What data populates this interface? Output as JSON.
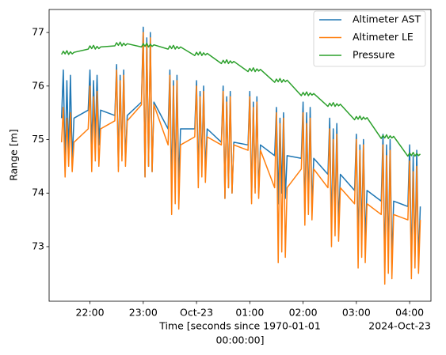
{
  "chart_data": {
    "type": "line",
    "xlabel": [
      "Time [seconds since 1970-01-01",
      "00:00:00]"
    ],
    "ylabel": "Range [m]",
    "x_offset_label": "2024-Oct-23",
    "legend": "upper right",
    "xlim": [
      "2024-10-22T21:14",
      "2024-10-23T04:24"
    ],
    "ylim": [
      71.98,
      77.43
    ],
    "yticks": [
      73,
      74,
      75,
      76,
      77
    ],
    "xticks": [
      {
        "value": "2024-10-22T22:00",
        "label": "22:00"
      },
      {
        "value": "2024-10-22T23:00",
        "label": "23:00"
      },
      {
        "value": "2024-10-23T00:00",
        "label": "Oct-23"
      },
      {
        "value": "2024-10-23T01:00",
        "label": "01:00"
      },
      {
        "value": "2024-10-23T02:00",
        "label": "02:00"
      },
      {
        "value": "2024-10-23T03:00",
        "label": "03:00"
      },
      {
        "value": "2024-10-23T04:00",
        "label": "04:00"
      }
    ],
    "x": [
      "2024-10-22T21:28",
      "2024-10-22T21:30",
      "2024-10-22T21:32",
      "2024-10-22T21:34",
      "2024-10-22T21:36",
      "2024-10-22T21:38",
      "2024-10-22T21:40",
      "2024-10-22T21:42",
      "2024-10-22T21:58",
      "2024-10-22T22:00",
      "2024-10-22T22:02",
      "2024-10-22T22:04",
      "2024-10-22T22:06",
      "2024-10-22T22:08",
      "2024-10-22T22:10",
      "2024-10-22T22:12",
      "2024-10-22T22:28",
      "2024-10-22T22:30",
      "2024-10-22T22:32",
      "2024-10-22T22:34",
      "2024-10-22T22:36",
      "2024-10-22T22:38",
      "2024-10-22T22:40",
      "2024-10-22T22:42",
      "2024-10-22T22:58",
      "2024-10-22T23:00",
      "2024-10-22T23:02",
      "2024-10-22T23:04",
      "2024-10-22T23:06",
      "2024-10-22T23:08",
      "2024-10-22T23:10",
      "2024-10-22T23:12",
      "2024-10-22T23:28",
      "2024-10-22T23:30",
      "2024-10-22T23:32",
      "2024-10-22T23:34",
      "2024-10-22T23:36",
      "2024-10-22T23:38",
      "2024-10-22T23:40",
      "2024-10-22T23:42",
      "2024-10-22T23:58",
      "2024-10-23T00:00",
      "2024-10-23T00:02",
      "2024-10-23T00:04",
      "2024-10-23T00:06",
      "2024-10-23T00:08",
      "2024-10-23T00:10",
      "2024-10-23T00:12",
      "2024-10-23T00:28",
      "2024-10-23T00:30",
      "2024-10-23T00:32",
      "2024-10-23T00:34",
      "2024-10-23T00:36",
      "2024-10-23T00:38",
      "2024-10-23T00:40",
      "2024-10-23T00:42",
      "2024-10-23T00:58",
      "2024-10-23T01:00",
      "2024-10-23T01:02",
      "2024-10-23T01:04",
      "2024-10-23T01:06",
      "2024-10-23T01:08",
      "2024-10-23T01:10",
      "2024-10-23T01:12",
      "2024-10-23T01:28",
      "2024-10-23T01:30",
      "2024-10-23T01:32",
      "2024-10-23T01:34",
      "2024-10-23T01:36",
      "2024-10-23T01:38",
      "2024-10-23T01:40",
      "2024-10-23T01:42",
      "2024-10-23T01:58",
      "2024-10-23T02:00",
      "2024-10-23T02:02",
      "2024-10-23T02:04",
      "2024-10-23T02:06",
      "2024-10-23T02:08",
      "2024-10-23T02:10",
      "2024-10-23T02:12",
      "2024-10-23T02:28",
      "2024-10-23T02:30",
      "2024-10-23T02:32",
      "2024-10-23T02:34",
      "2024-10-23T02:36",
      "2024-10-23T02:38",
      "2024-10-23T02:40",
      "2024-10-23T02:42",
      "2024-10-23T02:58",
      "2024-10-23T03:00",
      "2024-10-23T03:02",
      "2024-10-23T03:04",
      "2024-10-23T03:06",
      "2024-10-23T03:08",
      "2024-10-23T03:10",
      "2024-10-23T03:12",
      "2024-10-23T03:28",
      "2024-10-23T03:30",
      "2024-10-23T03:32",
      "2024-10-23T03:34",
      "2024-10-23T03:36",
      "2024-10-23T03:38",
      "2024-10-23T03:40",
      "2024-10-23T03:42",
      "2024-10-23T03:58",
      "2024-10-23T04:00",
      "2024-10-23T04:02",
      "2024-10-23T04:04",
      "2024-10-23T04:06",
      "2024-10-23T04:08",
      "2024-10-23T04:10",
      "2024-10-23T04:12"
    ],
    "series": [
      {
        "name": "Altimeter AST",
        "color": "#1f77b4",
        "values": [
          75.4,
          76.3,
          74.5,
          76.1,
          74.7,
          76.2,
          74.6,
          75.4,
          75.55,
          76.3,
          74.8,
          76.1,
          75.0,
          76.2,
          74.9,
          75.55,
          75.45,
          76.4,
          74.5,
          76.2,
          74.7,
          76.3,
          74.6,
          75.45,
          75.7,
          77.1,
          74.3,
          76.9,
          74.5,
          77.0,
          74.4,
          75.7,
          75.2,
          76.3,
          74.1,
          76.1,
          74.3,
          76.2,
          74.2,
          75.2,
          75.2,
          76.1,
          74.3,
          75.9,
          74.5,
          76.0,
          74.4,
          75.2,
          74.95,
          76.0,
          73.9,
          75.8,
          74.1,
          75.9,
          74.0,
          74.95,
          74.9,
          75.9,
          73.9,
          75.7,
          74.1,
          75.8,
          74.0,
          74.9,
          74.7,
          75.6,
          73.8,
          75.4,
          74.0,
          75.5,
          73.9,
          74.7,
          74.65,
          75.7,
          73.6,
          75.5,
          73.8,
          75.6,
          73.7,
          74.65,
          74.35,
          75.4,
          73.3,
          75.2,
          73.5,
          75.3,
          73.4,
          74.35,
          74.05,
          75.1,
          73.0,
          74.9,
          73.2,
          75.0,
          73.1,
          74.05,
          73.85,
          75.1,
          72.6,
          74.9,
          72.8,
          75.0,
          72.7,
          73.85,
          73.75,
          74.9,
          72.6,
          74.7,
          72.8,
          74.8,
          72.7,
          73.75
        ]
      },
      {
        "name": "Altimeter LE",
        "color": "#ff7f0e",
        "values": [
          74.95,
          75.6,
          74.3,
          75.4,
          74.5,
          75.5,
          74.4,
          74.95,
          75.2,
          76.0,
          74.4,
          75.8,
          74.6,
          75.9,
          74.5,
          75.2,
          75.35,
          76.3,
          74.4,
          76.1,
          74.6,
          76.2,
          74.5,
          75.35,
          75.65,
          77.0,
          74.3,
          76.8,
          74.5,
          76.9,
          74.4,
          75.65,
          74.9,
          76.2,
          73.6,
          76.0,
          73.8,
          76.1,
          73.7,
          74.9,
          75.05,
          76.0,
          74.1,
          75.8,
          74.3,
          75.9,
          74.2,
          75.05,
          74.9,
          75.9,
          73.9,
          75.7,
          74.1,
          75.8,
          74.0,
          74.9,
          74.8,
          75.8,
          73.8,
          75.6,
          74.0,
          75.7,
          73.9,
          74.8,
          74.1,
          75.5,
          72.7,
          75.3,
          72.9,
          75.4,
          72.8,
          74.1,
          74.45,
          75.5,
          73.4,
          75.3,
          73.6,
          75.4,
          73.5,
          74.45,
          74.1,
          75.2,
          73.0,
          75.0,
          73.2,
          75.1,
          73.1,
          74.1,
          73.8,
          75.0,
          72.6,
          74.8,
          72.8,
          74.9,
          72.7,
          73.8,
          73.6,
          74.9,
          72.3,
          74.7,
          72.5,
          74.8,
          72.4,
          73.6,
          73.5,
          74.6,
          72.4,
          74.4,
          72.6,
          74.5,
          72.5,
          73.5
        ]
      },
      {
        "name": "Pressure",
        "color": "#2ca02c",
        "values": [
          76.59,
          76.65,
          76.6,
          76.66,
          76.59,
          76.64,
          76.6,
          76.63,
          76.69,
          76.75,
          76.7,
          76.76,
          76.69,
          76.74,
          76.7,
          76.73,
          76.75,
          76.81,
          76.76,
          76.82,
          76.75,
          76.8,
          76.76,
          76.79,
          76.73,
          76.79,
          76.74,
          76.8,
          76.73,
          76.78,
          76.74,
          76.77,
          76.69,
          76.75,
          76.7,
          76.76,
          76.69,
          76.74,
          76.7,
          76.73,
          76.57,
          76.63,
          76.58,
          76.64,
          76.57,
          76.62,
          76.58,
          76.61,
          76.42,
          76.48,
          76.43,
          76.49,
          76.42,
          76.47,
          76.43,
          76.46,
          76.27,
          76.33,
          76.28,
          76.34,
          76.27,
          76.32,
          76.28,
          76.31,
          76.07,
          76.13,
          76.08,
          76.14,
          76.07,
          76.12,
          76.08,
          76.11,
          75.82,
          75.88,
          75.83,
          75.89,
          75.82,
          75.87,
          75.83,
          75.86,
          75.62,
          75.68,
          75.63,
          75.69,
          75.62,
          75.67,
          75.63,
          75.66,
          75.37,
          75.43,
          75.38,
          75.44,
          75.37,
          75.42,
          75.38,
          75.41,
          75.02,
          75.08,
          75.03,
          75.09,
          75.02,
          75.07,
          75.03,
          75.06,
          74.69,
          74.75,
          74.7,
          74.76,
          74.69,
          74.74,
          74.7,
          74.73
        ]
      }
    ]
  }
}
